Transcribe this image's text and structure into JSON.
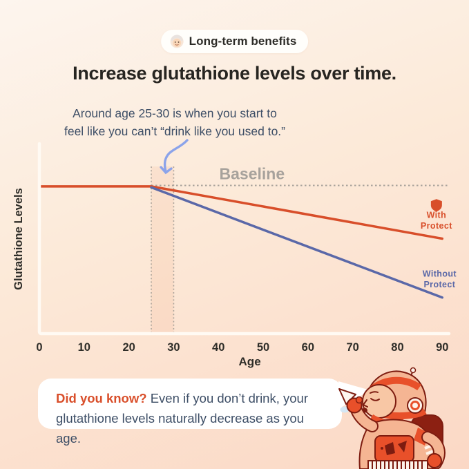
{
  "badge": {
    "icon": "grandma-emoji",
    "label": "Long-term benefits"
  },
  "title": "Increase glutathione levels over time.",
  "annotation": {
    "line1": "Around age 25-30 is when you start to",
    "line2": "feel like you can’t “drink like you used to.”"
  },
  "chart_data": {
    "type": "line",
    "title": "",
    "xlabel": "Age",
    "ylabel": "Glutathione Levels",
    "x_ticks": [
      0,
      10,
      20,
      30,
      40,
      50,
      60,
      70,
      80,
      90
    ],
    "xlim": [
      0,
      91.5
    ],
    "ylim": [
      0,
      100
    ],
    "grid": false,
    "legend_position": "inline-right",
    "baseline": {
      "label": "Baseline",
      "value": 78,
      "from_x": 25,
      "label_x": 47.5,
      "color": "#a8a29b"
    },
    "highlight_band": {
      "x_start": 25,
      "x_end": 30,
      "top_value": 88,
      "color": "rgba(232,120,70,0.09)"
    },
    "series": [
      {
        "name": "With Protect",
        "color": "#d84e2a",
        "x": [
          0,
          25,
          90
        ],
        "y": [
          77.5,
          77.5,
          50
        ],
        "label_lines": [
          "With",
          "Protect"
        ],
        "label_x": 88.7,
        "label_y": 61,
        "icon": "shield-icon"
      },
      {
        "name": "Without Protect",
        "color": "#5a68a8",
        "x": [
          25,
          90
        ],
        "y": [
          77,
          19
        ],
        "label_lines": [
          "Without",
          "Protect"
        ],
        "label_x": 89.4,
        "label_y": 30
      }
    ]
  },
  "did_you_know": {
    "lead": "Did you know?",
    "body": " Even if you don’t drink, your glutathione levels naturally decrease as you age."
  },
  "colors": {
    "accent_orange": "#d84e2a",
    "accent_blue": "#5a68a8",
    "text_dark": "#272521",
    "text_slate": "#3d4e66",
    "baseline_gray": "#a7a29c",
    "axis_white": "#fffaf3",
    "arrow_blue": "#8ba3ea"
  }
}
